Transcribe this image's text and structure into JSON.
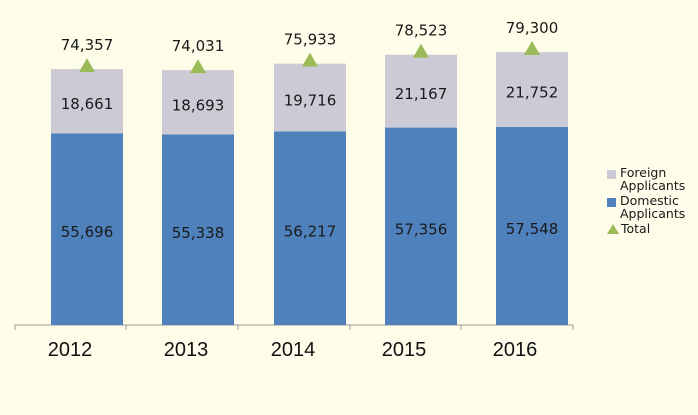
{
  "chart_data": {
    "type": "bar",
    "stacked": true,
    "categories": [
      "2012",
      "2013",
      "2014",
      "2015",
      "2016"
    ],
    "series": [
      {
        "name": "Domestic Applicants",
        "values": [
          55696,
          55338,
          56217,
          57356,
          57548
        ],
        "color": "#4f81bd",
        "labels": [
          "55,696",
          "55,338",
          "56,217",
          "57,356",
          "57,548"
        ]
      },
      {
        "name": "Foreign Applicants",
        "values": [
          18661,
          18693,
          19716,
          21167,
          21752
        ],
        "color": "#cccad5",
        "labels": [
          "18,661",
          "18,693",
          "19,716",
          "21,167",
          "21,752"
        ]
      },
      {
        "name": "Total",
        "type": "marker",
        "marker": "triangle",
        "values": [
          74357,
          74031,
          75933,
          78523,
          79300
        ],
        "color": "#9bbb59",
        "labels": [
          "74,357",
          "74,031",
          "75,933",
          "78,523",
          "79,300"
        ]
      }
    ],
    "ylim": [
      0,
      85000
    ],
    "title": "",
    "xlabel": "",
    "ylabel": "",
    "grid": false,
    "legend_position": "right"
  },
  "legend": {
    "items": [
      {
        "label": "Foreign\nApplicants",
        "color": "#cccad5"
      },
      {
        "label": "Domestic\nApplicants",
        "color": "#4f81bd"
      },
      {
        "label": "Total",
        "color": "#9bbb59"
      }
    ]
  }
}
